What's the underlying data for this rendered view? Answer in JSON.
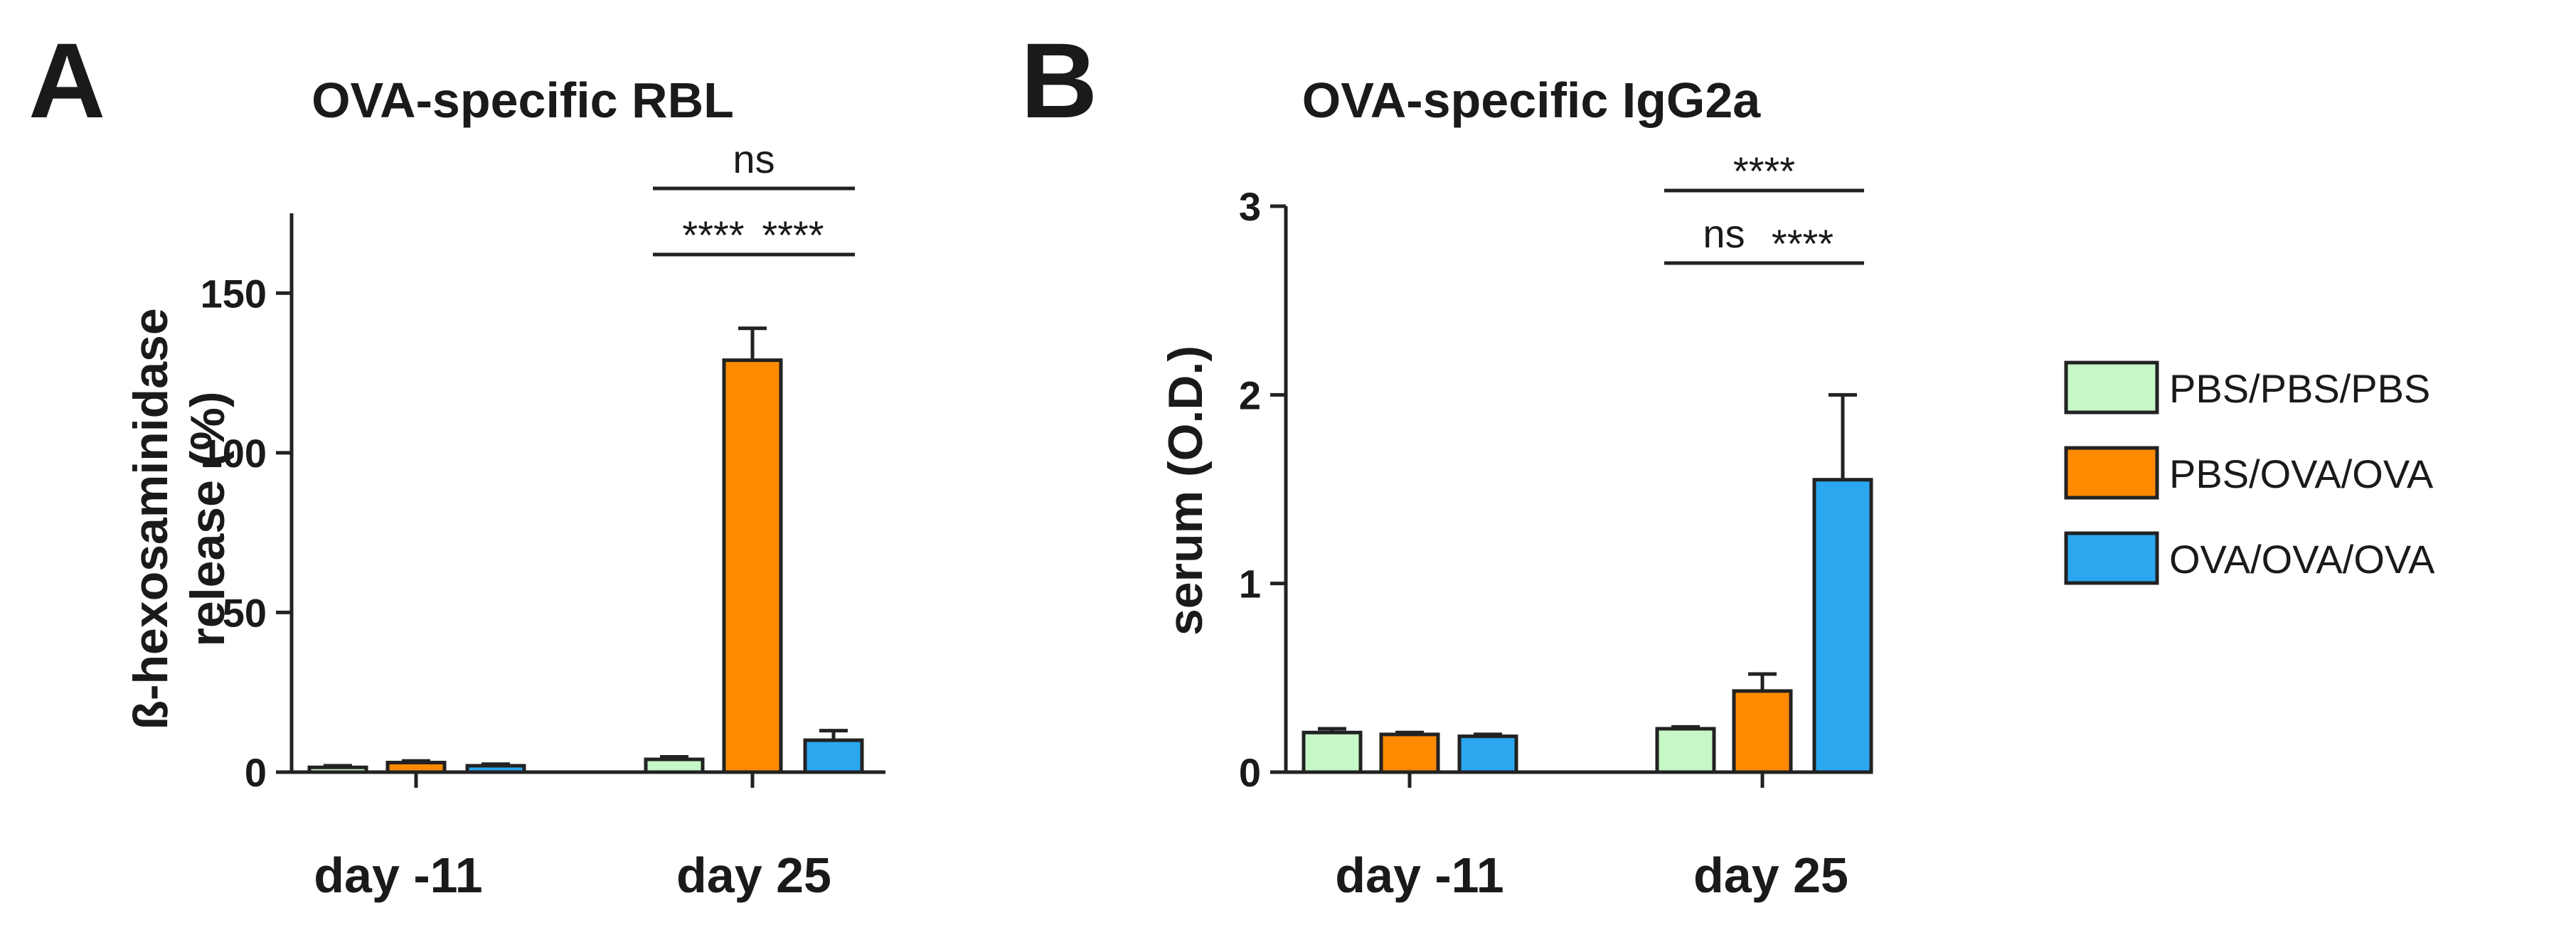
{
  "panels": [
    {
      "letter": "A",
      "chart_data": {
        "type": "bar",
        "title": "OVA-specific RBL",
        "ylabel_lines": [
          "ß-hexosaminidase",
          "release (%)"
        ],
        "xlabel": "",
        "ylim": [
          0,
          175
        ],
        "yticks": [
          0,
          50,
          100,
          150
        ],
        "categories": [
          "day -11",
          "day 25"
        ],
        "series": [
          {
            "name": "PBS/PBS/PBS",
            "values": [
              1.5,
              4
            ],
            "errors": [
              0.5,
              0.8
            ]
          },
          {
            "name": "PBS/OVA/OVA",
            "values": [
              3,
              129
            ],
            "errors": [
              0.5,
              10
            ]
          },
          {
            "name": "OVA/OVA/OVA",
            "values": [
              2,
              10
            ],
            "errors": [
              0.5,
              3
            ]
          }
        ],
        "annotations": [
          {
            "text": "ns",
            "category": 1,
            "from": 0,
            "to": 2,
            "level": 2
          },
          {
            "text": "****",
            "category": 1,
            "from": 0,
            "to": 1,
            "level": 1
          },
          {
            "text": "****",
            "category": 1,
            "from": 1,
            "to": 2,
            "level": 1
          }
        ]
      }
    },
    {
      "letter": "B",
      "chart_data": {
        "type": "bar",
        "title": "OVA-specific IgG2a",
        "ylabel_lines": [
          "serum (O.D.)"
        ],
        "xlabel": "",
        "ylim": [
          0,
          3
        ],
        "yticks": [
          0,
          1,
          2,
          3
        ],
        "categories": [
          "day -11",
          "day 25"
        ],
        "series": [
          {
            "name": "PBS/PBS/PBS",
            "values": [
              0.21,
              0.23
            ],
            "errors": [
              0.02,
              0.01
            ]
          },
          {
            "name": "PBS/OVA/OVA",
            "values": [
              0.2,
              0.43
            ],
            "errors": [
              0.01,
              0.09
            ]
          },
          {
            "name": "OVA/OVA/OVA",
            "values": [
              0.19,
              1.55
            ],
            "errors": [
              0.01,
              0.45
            ]
          }
        ],
        "annotations": [
          {
            "text": "****",
            "category": 1,
            "from": 0,
            "to": 2,
            "level": 2
          },
          {
            "text": "ns",
            "category": 1,
            "from": 0,
            "to": 1,
            "level": 1
          },
          {
            "text": "****",
            "category": 1,
            "from": 1,
            "to": 2,
            "level": 1
          }
        ]
      }
    }
  ],
  "legend": [
    {
      "label": "PBS/PBS/PBS",
      "color": "#c6f7c7"
    },
    {
      "label": "PBS/OVA/OVA",
      "color": "#ff8a00"
    },
    {
      "label": "OVA/OVA/OVA",
      "color": "#2ba7f0"
    }
  ]
}
